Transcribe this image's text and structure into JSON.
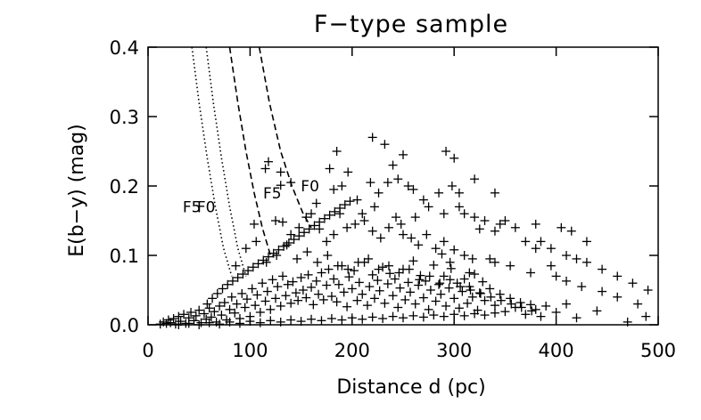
{
  "chart_data": {
    "type": "scatter",
    "title": "F−type sample",
    "xlabel": "Distance d (pc)",
    "ylabel": "E(b−y) (mag)",
    "xlim": [
      0,
      500
    ],
    "ylim": [
      0,
      0.4
    ],
    "xticks": [
      0,
      100,
      200,
      300,
      400,
      500
    ],
    "yticks": [
      0.0,
      0.1,
      0.2,
      0.3,
      0.4
    ],
    "xtick_labels": [
      "0",
      "100",
      "200",
      "300",
      "400",
      "500"
    ],
    "ytick_labels": [
      "0.0",
      "0.1",
      "0.2",
      "0.3",
      "0.4"
    ],
    "marker": "+",
    "grid": false,
    "points": [
      [
        12,
        0.001
      ],
      [
        15,
        0.004
      ],
      [
        18,
        0.002
      ],
      [
        20,
        0.007
      ],
      [
        22,
        0.003
      ],
      [
        25,
        0.009
      ],
      [
        27,
        0.001
      ],
      [
        30,
        0.012
      ],
      [
        32,
        0.005
      ],
      [
        35,
        0.015
      ],
      [
        37,
        0.002
      ],
      [
        40,
        0.01
      ],
      [
        42,
        0.018
      ],
      [
        45,
        0.006
      ],
      [
        47,
        0.013
      ],
      [
        50,
        0.021
      ],
      [
        52,
        0.003
      ],
      [
        55,
        0.016
      ],
      [
        57,
        0.008
      ],
      [
        60,
        0.024
      ],
      [
        62,
        0.011
      ],
      [
        65,
        0.019
      ],
      [
        67,
        0.004
      ],
      [
        70,
        0.027
      ],
      [
        72,
        0.014
      ],
      [
        75,
        0.032
      ],
      [
        77,
        0.007
      ],
      [
        80,
        0.022
      ],
      [
        82,
        0.04
      ],
      [
        85,
        0.017
      ],
      [
        87,
        0.03
      ],
      [
        90,
        0.009
      ],
      [
        92,
        0.045
      ],
      [
        95,
        0.025
      ],
      [
        97,
        0.037
      ],
      [
        100,
        0.012
      ],
      [
        102,
        0.052
      ],
      [
        105,
        0.028
      ],
      [
        107,
        0.043
      ],
      [
        110,
        0.018
      ],
      [
        112,
        0.06
      ],
      [
        115,
        0.034
      ],
      [
        117,
        0.048
      ],
      [
        120,
        0.022
      ],
      [
        122,
        0.065
      ],
      [
        125,
        0.038
      ],
      [
        127,
        0.055
      ],
      [
        130,
        0.027
      ],
      [
        132,
        0.07
      ],
      [
        135,
        0.042
      ],
      [
        137,
        0.058
      ],
      [
        140,
        0.031
      ],
      [
        142,
        0.062
      ],
      [
        145,
        0.046
      ],
      [
        147,
        0.035
      ],
      [
        150,
        0.068
      ],
      [
        152,
        0.05
      ],
      [
        155,
        0.039
      ],
      [
        157,
        0.072
      ],
      [
        160,
        0.054
      ],
      [
        162,
        0.029
      ],
      [
        165,
        0.063
      ],
      [
        167,
        0.044
      ],
      [
        170,
        0.075
      ],
      [
        172,
        0.036
      ],
      [
        175,
        0.057
      ],
      [
        177,
        0.08
      ],
      [
        180,
        0.041
      ],
      [
        182,
        0.066
      ],
      [
        185,
        0.033
      ],
      [
        187,
        0.058
      ],
      [
        190,
        0.085
      ],
      [
        192,
        0.047
      ],
      [
        195,
        0.026
      ],
      [
        197,
        0.069
      ],
      [
        200,
        0.052
      ],
      [
        202,
        0.078
      ],
      [
        205,
        0.035
      ],
      [
        207,
        0.061
      ],
      [
        210,
        0.044
      ],
      [
        212,
        0.09
      ],
      [
        215,
        0.028
      ],
      [
        217,
        0.055
      ],
      [
        220,
        0.072
      ],
      [
        222,
        0.038
      ],
      [
        225,
        0.064
      ],
      [
        227,
        0.049
      ],
      [
        230,
        0.083
      ],
      [
        232,
        0.031
      ],
      [
        235,
        0.059
      ],
      [
        237,
        0.074
      ],
      [
        240,
        0.042
      ],
      [
        242,
        0.066
      ],
      [
        245,
        0.025
      ],
      [
        247,
        0.053
      ],
      [
        250,
        0.08
      ],
      [
        252,
        0.036
      ],
      [
        255,
        0.061
      ],
      [
        257,
        0.047
      ],
      [
        260,
        0.092
      ],
      [
        262,
        0.03
      ],
      [
        265,
        0.057
      ],
      [
        267,
        0.071
      ],
      [
        270,
        0.039
      ],
      [
        272,
        0.063
      ],
      [
        275,
        0.022
      ],
      [
        277,
        0.05
      ],
      [
        280,
        0.086
      ],
      [
        282,
        0.034
      ],
      [
        285,
        0.058
      ],
      [
        287,
        0.044
      ],
      [
        290,
        0.07
      ],
      [
        292,
        0.027
      ],
      [
        295,
        0.053
      ],
      [
        297,
        0.081
      ],
      [
        300,
        0.038
      ],
      [
        303,
        0.06
      ],
      [
        305,
        0.024
      ],
      [
        308,
        0.048
      ],
      [
        310,
        0.066
      ],
      [
        313,
        0.031
      ],
      [
        315,
        0.055
      ],
      [
        318,
        0.04
      ],
      [
        320,
        0.073
      ],
      [
        323,
        0.021
      ],
      [
        325,
        0.046
      ],
      [
        328,
        0.062
      ],
      [
        330,
        0.035
      ],
      [
        335,
        0.052
      ],
      [
        340,
        0.028
      ],
      [
        345,
        0.044
      ],
      [
        350,
        0.019
      ],
      [
        355,
        0.038
      ],
      [
        360,
        0.025
      ],
      [
        365,
        0.032
      ],
      [
        370,
        0.015
      ],
      [
        375,
        0.029
      ],
      [
        380,
        0.022
      ],
      [
        385,
        0.012
      ],
      [
        390,
        0.027
      ],
      [
        400,
        0.018
      ],
      [
        410,
        0.03
      ],
      [
        420,
        0.01
      ],
      [
        440,
        0.02
      ],
      [
        470,
        0.004
      ],
      [
        488,
        0.012
      ],
      [
        30,
        0.0
      ],
      [
        40,
        0.002
      ],
      [
        50,
        0.0
      ],
      [
        60,
        0.003
      ],
      [
        70,
        0.001
      ],
      [
        80,
        0.004
      ],
      [
        90,
        0.002
      ],
      [
        100,
        0.005
      ],
      [
        110,
        0.003
      ],
      [
        120,
        0.006
      ],
      [
        130,
        0.004
      ],
      [
        140,
        0.007
      ],
      [
        150,
        0.005
      ],
      [
        160,
        0.008
      ],
      [
        170,
        0.006
      ],
      [
        180,
        0.009
      ],
      [
        190,
        0.007
      ],
      [
        200,
        0.01
      ],
      [
        210,
        0.008
      ],
      [
        220,
        0.011
      ],
      [
        230,
        0.009
      ],
      [
        240,
        0.012
      ],
      [
        250,
        0.01
      ],
      [
        260,
        0.013
      ],
      [
        270,
        0.011
      ],
      [
        280,
        0.014
      ],
      [
        290,
        0.012
      ],
      [
        300,
        0.015
      ],
      [
        310,
        0.013
      ],
      [
        320,
        0.016
      ],
      [
        330,
        0.014
      ],
      [
        340,
        0.017
      ],
      [
        58,
        0.03
      ],
      [
        63,
        0.038
      ],
      [
        68,
        0.045
      ],
      [
        73,
        0.052
      ],
      [
        78,
        0.058
      ],
      [
        83,
        0.063
      ],
      [
        88,
        0.068
      ],
      [
        93,
        0.073
      ],
      [
        98,
        0.078
      ],
      [
        103,
        0.083
      ],
      [
        108,
        0.088
      ],
      [
        113,
        0.093
      ],
      [
        118,
        0.098
      ],
      [
        123,
        0.103
      ],
      [
        128,
        0.108
      ],
      [
        133,
        0.113
      ],
      [
        138,
        0.118
      ],
      [
        143,
        0.123
      ],
      [
        148,
        0.128
      ],
      [
        153,
        0.133
      ],
      [
        158,
        0.138
      ],
      [
        163,
        0.143
      ],
      [
        168,
        0.148
      ],
      [
        173,
        0.153
      ],
      [
        178,
        0.158
      ],
      [
        183,
        0.163
      ],
      [
        188,
        0.168
      ],
      [
        193,
        0.173
      ],
      [
        198,
        0.178
      ],
      [
        104,
        0.145
      ],
      [
        125,
        0.15
      ],
      [
        132,
        0.148
      ],
      [
        140,
        0.13
      ],
      [
        148,
        0.14
      ],
      [
        155,
        0.155
      ],
      [
        160,
        0.16
      ],
      [
        168,
        0.138
      ],
      [
        175,
        0.12
      ],
      [
        182,
        0.13
      ],
      [
        188,
        0.16
      ],
      [
        195,
        0.14
      ],
      [
        203,
        0.145
      ],
      [
        212,
        0.15
      ],
      [
        220,
        0.135
      ],
      [
        228,
        0.125
      ],
      [
        236,
        0.14
      ],
      [
        243,
        0.155
      ],
      [
        250,
        0.13
      ],
      [
        258,
        0.125
      ],
      [
        265,
        0.115
      ],
      [
        273,
        0.13
      ],
      [
        282,
        0.11
      ],
      [
        290,
        0.12
      ],
      [
        300,
        0.108
      ],
      [
        310,
        0.1
      ],
      [
        318,
        0.095
      ],
      [
        325,
        0.138
      ],
      [
        335,
        0.095
      ],
      [
        115,
        0.225
      ],
      [
        118,
        0.235
      ],
      [
        130,
        0.22
      ],
      [
        140,
        0.205
      ],
      [
        178,
        0.225
      ],
      [
        185,
        0.25
      ],
      [
        190,
        0.2
      ],
      [
        196,
        0.22
      ],
      [
        210,
        0.16
      ],
      [
        222,
        0.17
      ],
      [
        235,
        0.205
      ],
      [
        240,
        0.23
      ],
      [
        255,
        0.2
      ],
      [
        270,
        0.18
      ],
      [
        285,
        0.19
      ],
      [
        298,
        0.2
      ],
      [
        305,
        0.19
      ],
      [
        310,
        0.16
      ],
      [
        320,
        0.155
      ],
      [
        330,
        0.15
      ],
      [
        340,
        0.135
      ],
      [
        345,
        0.145
      ],
      [
        360,
        0.14
      ],
      [
        380,
        0.145
      ],
      [
        385,
        0.12
      ],
      [
        395,
        0.11
      ],
      [
        405,
        0.14
      ],
      [
        415,
        0.135
      ],
      [
        430,
        0.12
      ],
      [
        86,
        0.085
      ],
      [
        96,
        0.11
      ],
      [
        106,
        0.12
      ],
      [
        116,
        0.09
      ],
      [
        126,
        0.1
      ],
      [
        136,
        0.115
      ],
      [
        146,
        0.095
      ],
      [
        156,
        0.105
      ],
      [
        166,
        0.09
      ],
      [
        176,
        0.1
      ],
      [
        186,
        0.085
      ],
      [
        196,
        0.08
      ],
      [
        206,
        0.09
      ],
      [
        216,
        0.095
      ],
      [
        226,
        0.08
      ],
      [
        236,
        0.085
      ],
      [
        246,
        0.075
      ],
      [
        256,
        0.08
      ],
      [
        266,
        0.065
      ],
      [
        276,
        0.07
      ],
      [
        286,
        0.06
      ],
      [
        296,
        0.065
      ],
      [
        306,
        0.055
      ],
      [
        316,
        0.05
      ],
      [
        326,
        0.045
      ],
      [
        336,
        0.04
      ],
      [
        346,
        0.035
      ],
      [
        356,
        0.03
      ],
      [
        366,
        0.025
      ],
      [
        376,
        0.02
      ],
      [
        130,
        0.201
      ],
      [
        165,
        0.175
      ],
      [
        182,
        0.195
      ],
      [
        248,
        0.145
      ],
      [
        262,
        0.155
      ],
      [
        288,
        0.102
      ],
      [
        296,
        0.09
      ],
      [
        315,
        0.075
      ],
      [
        340,
        0.09
      ],
      [
        355,
        0.085
      ],
      [
        375,
        0.075
      ],
      [
        400,
        0.07
      ],
      [
        410,
        0.063
      ],
      [
        425,
        0.055
      ],
      [
        445,
        0.048
      ],
      [
        460,
        0.04
      ],
      [
        480,
        0.03
      ],
      [
        292,
        0.25
      ],
      [
        300,
        0.24
      ],
      [
        250,
        0.245
      ],
      [
        232,
        0.26
      ],
      [
        220,
        0.27
      ],
      [
        205,
        0.18
      ],
      [
        218,
        0.205
      ],
      [
        226,
        0.19
      ],
      [
        245,
        0.21
      ],
      [
        260,
        0.195
      ],
      [
        275,
        0.17
      ],
      [
        290,
        0.16
      ],
      [
        305,
        0.17
      ],
      [
        320,
        0.21
      ],
      [
        340,
        0.19
      ],
      [
        350,
        0.15
      ],
      [
        370,
        0.12
      ],
      [
        380,
        0.11
      ],
      [
        395,
        0.085
      ],
      [
        410,
        0.1
      ],
      [
        420,
        0.095
      ],
      [
        430,
        0.09
      ],
      [
        445,
        0.08
      ],
      [
        460,
        0.07
      ],
      [
        475,
        0.06
      ],
      [
        490,
        0.05
      ]
    ],
    "curves": [
      {
        "style": "dotted",
        "label": "F5",
        "points": [
          [
            43,
            0.4
          ],
          [
            50,
            0.32
          ],
          [
            58,
            0.24
          ],
          [
            66,
            0.17
          ],
          [
            74,
            0.11
          ],
          [
            82,
            0.07
          ]
        ]
      },
      {
        "style": "dotted",
        "label": "F0",
        "points": [
          [
            57,
            0.4
          ],
          [
            64,
            0.32
          ],
          [
            72,
            0.24
          ],
          [
            80,
            0.17
          ],
          [
            88,
            0.11
          ],
          [
            96,
            0.07
          ]
        ]
      },
      {
        "style": "dashed",
        "label": "F5",
        "points": [
          [
            80,
            0.4
          ],
          [
            88,
            0.32
          ],
          [
            96,
            0.25
          ],
          [
            104,
            0.19
          ],
          [
            112,
            0.14
          ],
          [
            120,
            0.1
          ]
        ]
      },
      {
        "style": "dashed",
        "label": "F0",
        "points": [
          [
            109,
            0.4
          ],
          [
            119,
            0.32
          ],
          [
            130,
            0.25
          ],
          [
            141,
            0.2
          ],
          [
            152,
            0.16
          ],
          [
            160,
            0.14
          ]
        ]
      }
    ]
  }
}
